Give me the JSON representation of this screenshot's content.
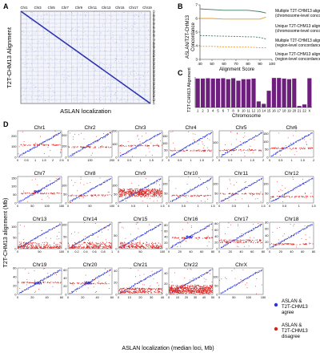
{
  "panel_labels": {
    "a": "A",
    "b": "B",
    "c": "C",
    "d": "D"
  },
  "panel_a": {
    "top_chrom_labels": [
      "Chr1",
      "Chr3",
      "Chr5",
      "Chr7",
      "Chr9",
      "Chr11",
      "Chr13",
      "Chr15",
      "Chr17",
      "Chr19"
    ],
    "right_chrom_labels": [
      "Chr1",
      "Chr2",
      "Chr3",
      "Chr4",
      "Chr5",
      "Chr6",
      "Chr7",
      "Chr8",
      "Chr9",
      "Chr10",
      "Chr11",
      "Chr12",
      "Chr13",
      "Chr14",
      "Chr15",
      "Chr16",
      "Chr17",
      "Chr18",
      "Chr19",
      "Chr20",
      "Chr21",
      "Chr22",
      "ChrX"
    ],
    "ylabel": "T2T-CHM13 Alignment",
    "xlabel": "ASLAN localization"
  },
  "panel_b_labels": {
    "ylabel_1": "ASLAN/T2T-CHM13",
    "ylabel_2": "Concordance",
    "xlabel": "Alignment Score",
    "legend": [
      {
        "line1": "Multiple T2T-CHM13 alignments",
        "line2": "(chromosome-level concordance)",
        "color": "#3f7a5f",
        "dash": false
      },
      {
        "line1": "Unique T2T-CHM13 alignment",
        "line2": "(chromosome-level concordance)",
        "color": "#e59a2b",
        "dash": false
      },
      {
        "line1": "Multiple T2T-CHM13 alignments",
        "line2": "(region-level concordance)",
        "color": "#3f7a5f",
        "dash": true
      },
      {
        "line1": "Unique T2T-CHM13 alignment",
        "line2": "(region-level concordance)",
        "color": "#e59a2b",
        "dash": true
      }
    ]
  },
  "panel_c_labels": {
    "ylabel": "T2T-CHM13 Alignment",
    "xlabel": "Chromosome"
  },
  "panel_d_labels": {
    "ylabel": "T2T-CHM13 alignment (Mb)",
    "xlabel": "ASLAN localization (median loci, Mb)",
    "legend_agree": [
      "ASLAN &",
      "T2T-CHM13",
      "agree"
    ],
    "legend_disagree": [
      "ASLAN &",
      "T2T-CHM13",
      "disagree"
    ]
  },
  "colors": {
    "agree": "#2b35d6",
    "disagree": "#d9201c",
    "bar": "#6e1f7e"
  },
  "chart_data": [
    {
      "type": "line",
      "panel": "B",
      "xlabel": "Alignment Score",
      "ylabel": "ASLAN/T2T-CHM13 Concordance",
      "xlim": [
        40,
        100
      ],
      "ylim": [
        3,
        7
      ],
      "x": [
        40,
        50,
        60,
        70,
        80,
        85,
        90,
        95
      ],
      "series": [
        {
          "name": "Multiple T2T-CHM13 alignments (chromosome-level concordance)",
          "values": [
            6.7,
            6.65,
            6.6,
            6.6,
            6.6,
            6.55,
            6.5,
            6.4
          ]
        },
        {
          "name": "Unique T2T-CHM13 alignment (chromosome-level concordance)",
          "values": [
            6.0,
            6.0,
            5.95,
            5.95,
            5.95,
            5.95,
            5.95,
            6.1
          ]
        },
        {
          "name": "Multiple T2T-CHM13 alignments (region-level concordance)",
          "values": [
            4.75,
            4.72,
            4.7,
            4.68,
            4.65,
            4.65,
            4.6,
            4.5
          ]
        },
        {
          "name": "Unique T2T-CHM13 alignment (region-level concordance)",
          "values": [
            3.95,
            3.95,
            3.92,
            3.9,
            3.9,
            3.88,
            3.85,
            3.85
          ]
        }
      ],
      "xticks": [
        40,
        50,
        60,
        70,
        80,
        90,
        100
      ],
      "yticks": [
        3,
        4,
        5,
        6,
        7
      ]
    },
    {
      "type": "bar",
      "panel": "C",
      "categories": [
        "1",
        "2",
        "3",
        "4",
        "5",
        "6",
        "7",
        "8",
        "9",
        "10",
        "11",
        "12",
        "13",
        "14",
        "15",
        "16",
        "17",
        "18",
        "19",
        "20",
        "21",
        "22",
        "X"
      ],
      "values": [
        0.95,
        0.95,
        0.96,
        0.95,
        0.95,
        0.96,
        0.93,
        0.96,
        0.88,
        0.93,
        0.93,
        0.95,
        0.2,
        0.12,
        0.55,
        0.97,
        0.97,
        0.95,
        0.93,
        0.95,
        0.05,
        0.1,
        0.96
      ],
      "ylim": [
        0,
        1
      ],
      "xlabel": "Chromosome",
      "ylabel": "T2T-CHM13 Alignment"
    },
    {
      "type": "scatter",
      "panel": "D",
      "xlabel": "ASLAN localization (median loci, Mb)",
      "ylabel": "T2T-CHM13 alignment (Mb)",
      "panels": [
        {
          "title": "Chr1",
          "xlim": [
            0,
            2.5
          ],
          "ylim": [
            0,
            250
          ],
          "xticks": [
            "0",
            "0.5",
            "1",
            "1.5",
            "2",
            "2.5"
          ],
          "yticks": [
            "0",
            "100",
            "200"
          ],
          "noise_y": [
            120
          ]
        },
        {
          "title": "Chr2",
          "xlim": [
            0,
            240
          ],
          "ylim": [
            0,
            240
          ],
          "xticks": [
            "0",
            "100",
            "200"
          ],
          "yticks": [
            "0",
            "100",
            "200"
          ],
          "noise_y": [
            95
          ]
        },
        {
          "title": "Chr3",
          "xlim": [
            0,
            2
          ],
          "ylim": [
            0,
            200
          ],
          "xticks": [
            "0",
            "0.5",
            "1",
            "1.5",
            "2"
          ],
          "yticks": [
            "0",
            "100",
            "200"
          ],
          "noise_y": [
            90
          ]
        },
        {
          "title": "Chr4",
          "xlim": [
            0,
            2
          ],
          "ylim": [
            0,
            190
          ],
          "xticks": [
            "0",
            "0.5",
            "1",
            "1.5",
            "2"
          ],
          "yticks": [
            "0",
            "50",
            "100",
            "150"
          ],
          "noise_y": [
            50
          ]
        },
        {
          "title": "Chr5",
          "xlim": [
            0,
            2
          ],
          "ylim": [
            0,
            180
          ],
          "xticks": [
            "0",
            "0.5",
            "1",
            "1.5",
            "2"
          ],
          "yticks": [
            "0",
            "100"
          ],
          "noise_y": [
            50
          ]
        },
        {
          "title": "Chr6",
          "xlim": [
            0,
            2
          ],
          "ylim": [
            0,
            170
          ],
          "xticks": [
            "0",
            "0.5",
            "1",
            "1.5",
            "2"
          ],
          "yticks": [
            "0",
            "50",
            "100",
            "150"
          ],
          "noise_y": [
            60
          ]
        },
        {
          "title": "Chr7",
          "xlim": [
            0,
            160
          ],
          "ylim": [
            0,
            160
          ],
          "xticks": [
            "0",
            "50",
            "100",
            "150"
          ],
          "yticks": [
            "0",
            "50",
            "100",
            "150"
          ],
          "noise_y": [
            60
          ],
          "center_cluster": true
        },
        {
          "title": "Chr8",
          "xlim": [
            0,
            150
          ],
          "ylim": [
            0,
            150
          ],
          "xticks": [
            "0",
            "50",
            "100"
          ],
          "yticks": [
            "0",
            "50",
            "100"
          ],
          "noise_y": [
            45
          ]
        },
        {
          "title": "Chr9",
          "xlim": [
            0,
            1.5
          ],
          "ylim": [
            0,
            150
          ],
          "xticks": [
            "0",
            "0.5",
            "1",
            "1.5"
          ],
          "yticks": [
            "0",
            "50",
            "100"
          ],
          "noise_y": [
            48,
            60,
            72
          ],
          "heavy_band": true
        },
        {
          "title": "Chr10",
          "xlim": [
            0,
            1.5
          ],
          "ylim": [
            0,
            140
          ],
          "xticks": [
            "0",
            "0.5",
            "1",
            "1.5"
          ],
          "yticks": [
            "0",
            "50",
            "100"
          ],
          "noise_y": [
            40
          ]
        },
        {
          "title": "Chr11",
          "xlim": [
            0,
            1.5
          ],
          "ylim": [
            0,
            140
          ],
          "xticks": [
            "0",
            "0.5",
            "1",
            "1.5"
          ],
          "yticks": [
            "0",
            "50",
            "100"
          ],
          "noise_y": [
            50
          ]
        },
        {
          "title": "Chr12",
          "xlim": [
            0,
            1.5
          ],
          "ylim": [
            0,
            140
          ],
          "xticks": [
            "0",
            "0.5",
            "1",
            "1.5"
          ],
          "yticks": [
            "0",
            "50",
            "100"
          ],
          "noise_y": [
            35
          ]
        },
        {
          "title": "Chr13",
          "xlim": [
            0,
            120
          ],
          "ylim": [
            0,
            120
          ],
          "xticks": [
            "0",
            "50",
            "100"
          ],
          "yticks": [
            "0",
            "50",
            "100"
          ],
          "noise_y": [
            5,
            10
          ],
          "bottom_band": true
        },
        {
          "title": "Chr14",
          "xlim": [
            0,
            1
          ],
          "ylim": [
            0,
            110
          ],
          "xticks": [
            "0",
            "0.2",
            "0.4",
            "0.6",
            "0.8",
            "1"
          ],
          "yticks": [
            "0",
            "50",
            "100"
          ],
          "noise_y": [
            5,
            10
          ],
          "bottom_band": true
        },
        {
          "title": "Chr15",
          "xlim": [
            0,
            100
          ],
          "ylim": [
            0,
            100
          ],
          "xticks": [
            "0",
            "50",
            "100"
          ],
          "yticks": [
            "0",
            "50"
          ],
          "noise_y": [
            5,
            10
          ],
          "bottom_band": true
        },
        {
          "title": "Chr16",
          "xlim": [
            0,
            90
          ],
          "ylim": [
            0,
            90
          ],
          "xticks": [
            "0",
            "20",
            "40",
            "60",
            "80"
          ],
          "yticks": [
            "0",
            "20",
            "40",
            "60",
            "80"
          ],
          "noise_y": [
            38
          ],
          "center_cluster": true
        },
        {
          "title": "Chr17",
          "xlim": [
            0,
            80
          ],
          "ylim": [
            0,
            85
          ],
          "xticks": [
            "0",
            "20",
            "40",
            "60",
            "80"
          ],
          "yticks": [
            "0",
            "20",
            "40",
            "60",
            "80"
          ],
          "noise_y": [
            22,
            28
          ]
        },
        {
          "title": "Chr18",
          "xlim": [
            0,
            80
          ],
          "ylim": [
            0,
            80
          ],
          "xticks": [
            "0",
            "20",
            "40",
            "60",
            "80"
          ],
          "yticks": [
            "0",
            "20",
            "40",
            "60",
            "80"
          ],
          "noise_y": [
            15
          ]
        },
        {
          "title": "Chr19",
          "xlim": [
            0,
            60
          ],
          "ylim": [
            0,
            60
          ],
          "xticks": [
            "0",
            "20",
            "40",
            "60"
          ],
          "yticks": [
            "0",
            "20",
            "40",
            "60"
          ],
          "noise_y": [
            28
          ],
          "center_cluster": true
        },
        {
          "title": "Chr20",
          "xlim": [
            0,
            60
          ],
          "ylim": [
            0,
            65
          ],
          "xticks": [
            "0",
            "20",
            "40",
            "60"
          ],
          "yticks": [
            "0",
            "20",
            "40",
            "60"
          ],
          "noise_y": [
            28
          ],
          "center_cluster": true
        },
        {
          "title": "Chr21",
          "xlim": [
            0,
            45
          ],
          "ylim": [
            0,
            45
          ],
          "xticks": [
            "0",
            "10",
            "20",
            "30",
            "40"
          ],
          "yticks": [
            "0",
            "20",
            "40"
          ],
          "noise_y": [
            5,
            10
          ],
          "bottom_band": true
        },
        {
          "title": "Chr22",
          "xlim": [
            0,
            50
          ],
          "ylim": [
            0,
            50
          ],
          "xticks": [
            "0",
            "10",
            "20",
            "30",
            "40",
            "50"
          ],
          "yticks": [
            "0",
            "20",
            "40"
          ],
          "noise_y": [
            5,
            10,
            15
          ],
          "bottom_band": true,
          "heavy_band": true
        },
        {
          "title": "ChrX",
          "xlim": [
            0,
            150
          ],
          "ylim": [
            0,
            150
          ],
          "xticks": [
            "0",
            "50",
            "100",
            "150"
          ],
          "yticks": [
            "0",
            "50",
            "100"
          ],
          "noise_y": []
        }
      ]
    }
  ]
}
